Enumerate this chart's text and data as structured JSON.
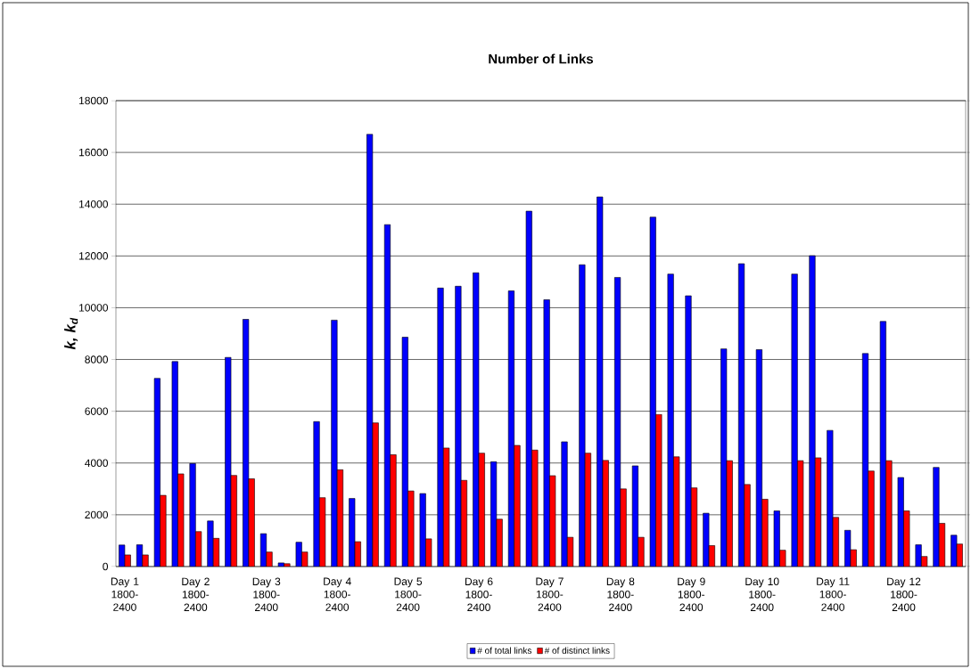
{
  "chart_data": {
    "type": "bar",
    "title": "Number of Links",
    "ylabel": "k, k$_{d}$",
    "categories": [
      "Day 1 1800-2400",
      null,
      null,
      null,
      "Day 2 1800-2400",
      null,
      null,
      null,
      "Day 3 1800-2400",
      null,
      null,
      null,
      "Day 4 1800-2400",
      null,
      null,
      null,
      "Day 5 1800-2400",
      null,
      null,
      null,
      "Day 6 1800-2400",
      null,
      null,
      null,
      "Day 7 1800-2400",
      null,
      null,
      null,
      "Day 8 1800-2400",
      null,
      null,
      null,
      "Day 9 1800-2400",
      null,
      null,
      null,
      "Day 10 1800-2400",
      null,
      null,
      null,
      "Day 11 1800-2400",
      null,
      null,
      null,
      "Day 12 1800-2400",
      null,
      null,
      null
    ],
    "series": [
      {
        "name": "# of total links",
        "color": "#0000ff",
        "values": [
          830,
          840,
          7270,
          7920,
          3980,
          1760,
          8080,
          9550,
          1270,
          140,
          940,
          5600,
          9520,
          2630,
          16700,
          13210,
          8860,
          2820,
          10760,
          10830,
          11350,
          4050,
          10650,
          13730,
          10310,
          4820,
          11660,
          14280,
          11170,
          3890,
          13500,
          11300,
          10460,
          2060,
          8410,
          11700,
          8380,
          2150,
          11300,
          12010,
          5260,
          1400,
          8230,
          9470,
          3440,
          840,
          3830,
          1210
        ]
      },
      {
        "name": "# of distinct links",
        "color": "#ff0000",
        "values": [
          450,
          450,
          2750,
          3580,
          1350,
          1090,
          3520,
          3390,
          560,
          110,
          560,
          2660,
          3740,
          960,
          5550,
          4320,
          2920,
          1070,
          4580,
          3330,
          4380,
          1830,
          4680,
          4500,
          3510,
          1130,
          4380,
          4100,
          3000,
          1130,
          5880,
          4240,
          3040,
          810,
          4090,
          3170,
          2600,
          630,
          4090,
          4200,
          1900,
          650,
          3690,
          4090,
          2150,
          390,
          1670,
          870
        ]
      }
    ],
    "ylim": [
      0,
      18000
    ],
    "yticks": [
      0,
      2000,
      4000,
      6000,
      8000,
      10000,
      12000,
      14000,
      16000,
      18000
    ],
    "grid": "y",
    "legend": "bottom"
  }
}
